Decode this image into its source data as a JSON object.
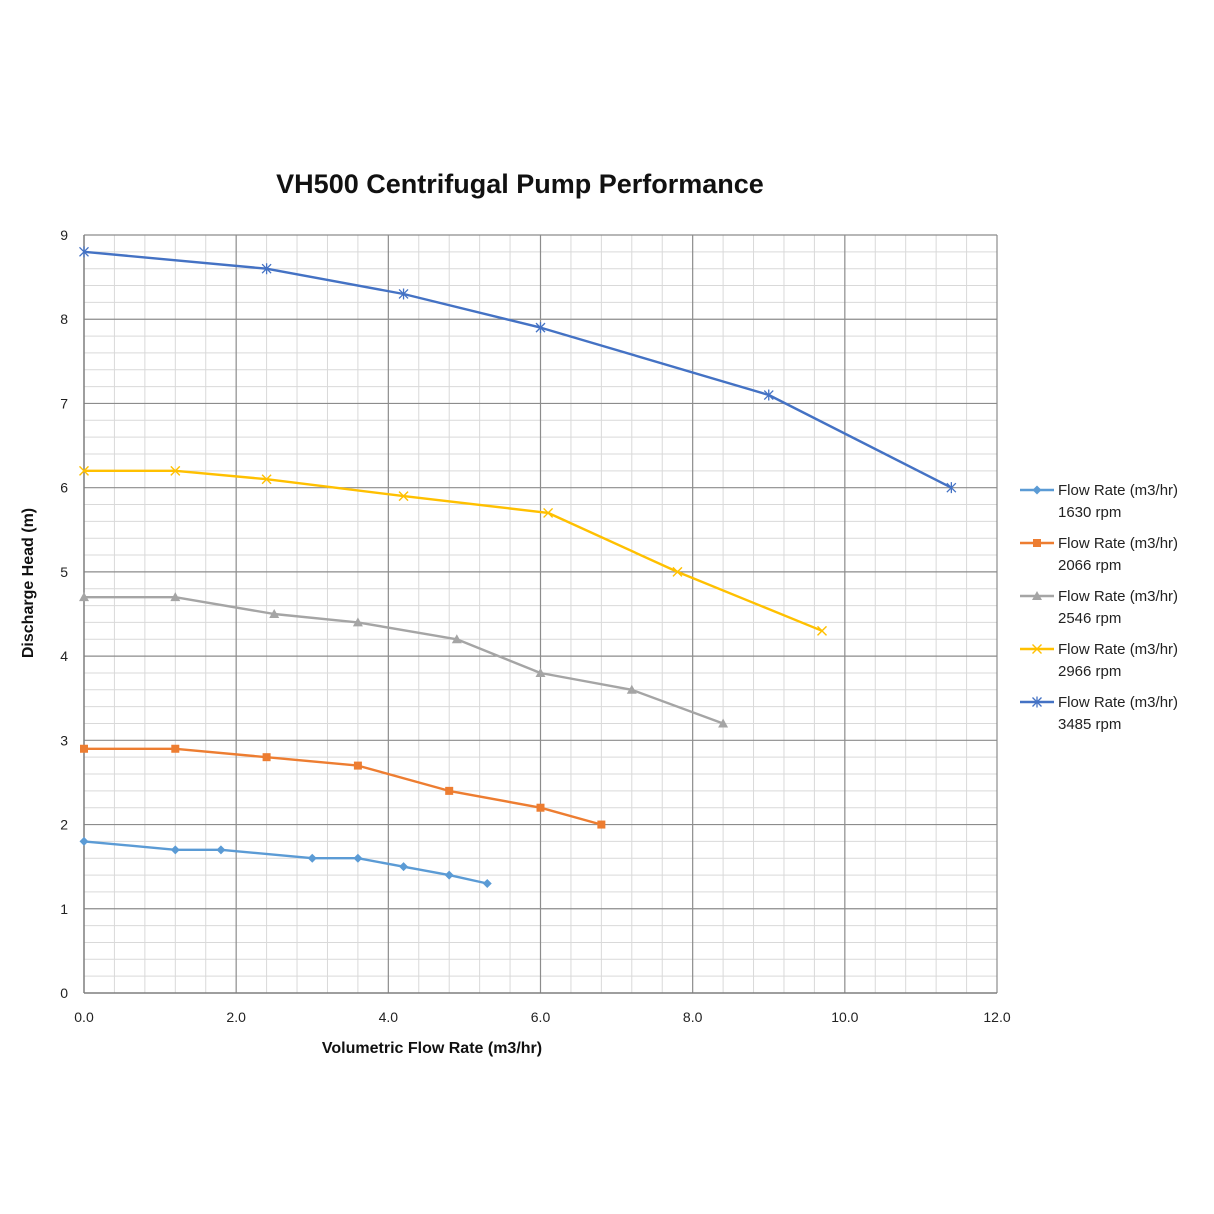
{
  "chart_data": {
    "type": "line",
    "title": "VH500 Centrifugal Pump Performance",
    "xlabel": "Volumetric Flow Rate (m3/hr)",
    "ylabel": "Discharge Head (m)",
    "xlim": [
      0,
      12
    ],
    "ylim": [
      0,
      9
    ],
    "x_ticks": [
      "0.0",
      "2.0",
      "4.0",
      "6.0",
      "8.0",
      "10.0",
      "12.0"
    ],
    "y_ticks": [
      "0",
      "1",
      "2",
      "3",
      "4",
      "5",
      "6",
      "7",
      "8",
      "9"
    ],
    "grid": true,
    "legend_position": "right",
    "series": [
      {
        "name_line1": "Flow Rate (m3/hr)",
        "name_line2": "1630 rpm",
        "color": "#5b9bd5",
        "marker": "diamond",
        "points": [
          [
            0,
            1.8
          ],
          [
            1.2,
            1.7
          ],
          [
            1.8,
            1.7
          ],
          [
            3.0,
            1.6
          ],
          [
            3.6,
            1.6
          ],
          [
            4.2,
            1.5
          ],
          [
            4.8,
            1.4
          ],
          [
            5.3,
            1.3
          ]
        ]
      },
      {
        "name_line1": "Flow Rate (m3/hr)",
        "name_line2": "2066 rpm",
        "color": "#ed7d31",
        "marker": "square",
        "points": [
          [
            0,
            2.9
          ],
          [
            1.2,
            2.9
          ],
          [
            2.4,
            2.8
          ],
          [
            3.6,
            2.7
          ],
          [
            4.8,
            2.4
          ],
          [
            6.0,
            2.2
          ],
          [
            6.8,
            2.0
          ]
        ]
      },
      {
        "name_line1": "Flow Rate (m3/hr)",
        "name_line2": "2546 rpm",
        "color": "#a5a5a5",
        "marker": "triangle",
        "points": [
          [
            0,
            4.7
          ],
          [
            1.2,
            4.7
          ],
          [
            2.5,
            4.5
          ],
          [
            3.6,
            4.4
          ],
          [
            4.9,
            4.2
          ],
          [
            6.0,
            3.8
          ],
          [
            7.2,
            3.6
          ],
          [
            8.4,
            3.2
          ]
        ]
      },
      {
        "name_line1": "Flow Rate (m3/hr)",
        "name_line2": "2966 rpm",
        "color": "#ffc000",
        "marker": "x",
        "points": [
          [
            0,
            6.2
          ],
          [
            1.2,
            6.2
          ],
          [
            2.4,
            6.1
          ],
          [
            4.2,
            5.9
          ],
          [
            6.1,
            5.7
          ],
          [
            7.8,
            5.0
          ],
          [
            9.7,
            4.3
          ]
        ]
      },
      {
        "name_line1": "Flow Rate (m3/hr)",
        "name_line2": "3485 rpm",
        "color": "#4472c4",
        "marker": "star",
        "points": [
          [
            0,
            8.8
          ],
          [
            2.4,
            8.6
          ],
          [
            4.2,
            8.3
          ],
          [
            6.0,
            7.9
          ],
          [
            9.0,
            7.1
          ],
          [
            11.4,
            6.0
          ]
        ]
      }
    ]
  }
}
